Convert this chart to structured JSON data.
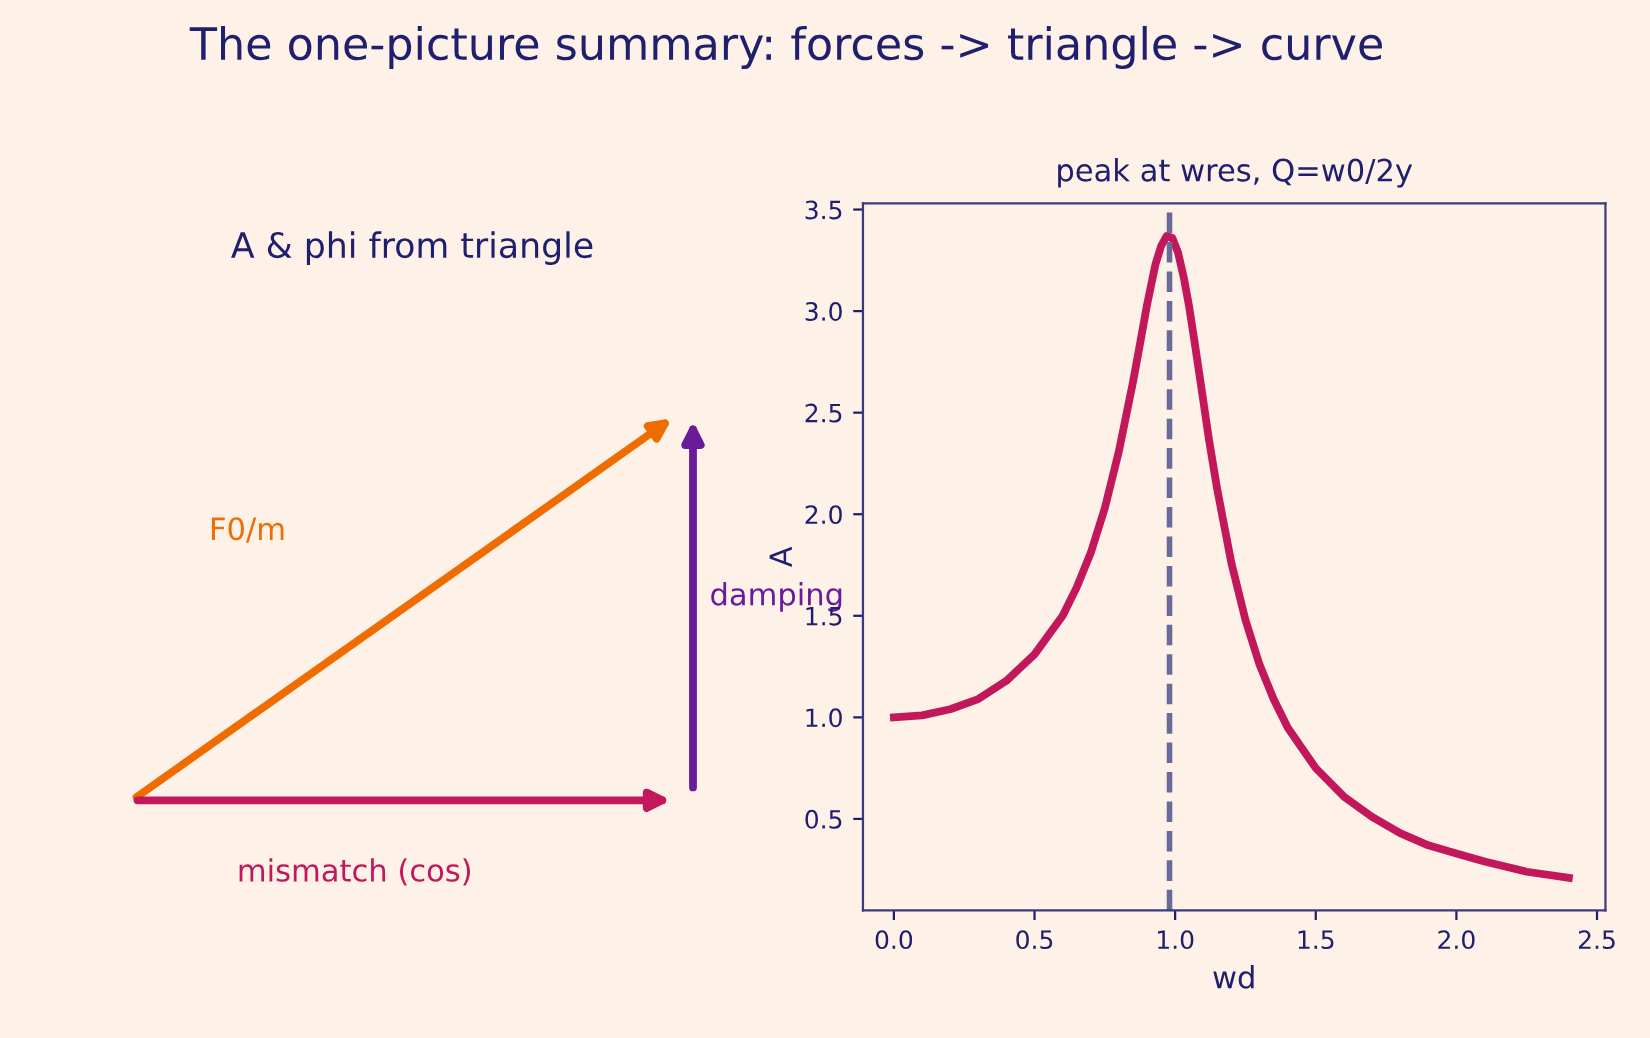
{
  "chart_data": [
    {
      "type": "other",
      "title": "A & phi from triangle",
      "annotations": [
        "The one-picture summary: forces -> triangle -> curve",
        "F0/m",
        "damping",
        "mismatch (cos)"
      ]
    },
    {
      "type": "line",
      "title": "peak at wres, Q=w0/2y",
      "xlabel": "wd",
      "ylabel": "A",
      "series": [
        {
          "color": "#c2185b",
          "x": [
            0,
            0.1,
            0.2,
            0.3,
            0.4,
            0.5,
            0.6,
            0.65,
            0.7,
            0.75,
            0.8,
            0.85,
            0.87,
            0.9,
            0.93,
            0.95,
            0.97,
            0.99,
            1.01,
            1.03,
            1.05,
            1.07,
            1.1,
            1.12,
            1.15,
            1.2,
            1.25,
            1.3,
            1.35,
            1.4,
            1.5,
            1.6,
            1.7,
            1.8,
            1.9,
            2.0,
            2.1,
            2.25,
            2.4
          ],
          "values": [
            1.0,
            1.01,
            1.04,
            1.09,
            1.18,
            1.31,
            1.5,
            1.64,
            1.81,
            2.03,
            2.31,
            2.65,
            2.8,
            3.03,
            3.23,
            3.32,
            3.37,
            3.36,
            3.29,
            3.17,
            3.02,
            2.84,
            2.56,
            2.37,
            2.12,
            1.76,
            1.48,
            1.26,
            1.09,
            0.95,
            0.75,
            0.61,
            0.51,
            0.43,
            0.37,
            0.33,
            0.29,
            0.24,
            0.21
          ]
        }
      ],
      "ref_lines": [
        {
          "axis": "x",
          "value": 0.98,
          "color": "#6a6a9a",
          "line_style": "dashed"
        }
      ],
      "xlim": [
        -0.11,
        2.53
      ],
      "ylim": [
        0.05,
        3.53
      ],
      "xticks": [
        {
          "value": 0,
          "label": "0.0"
        },
        0.5,
        {
          "value": 1,
          "label": "1.0"
        },
        1.5,
        {
          "value": 2,
          "label": "2.0"
        },
        2.5
      ],
      "yticks": [
        0.5,
        {
          "value": 1,
          "label": "1.0"
        },
        1.5,
        {
          "value": 2,
          "label": "2.0"
        },
        2.5,
        {
          "value": 3,
          "label": "3.0"
        },
        3.5
      ],
      "grid": false,
      "marker": "none",
      "line_style": "solid",
      "legend": false
    }
  ]
}
